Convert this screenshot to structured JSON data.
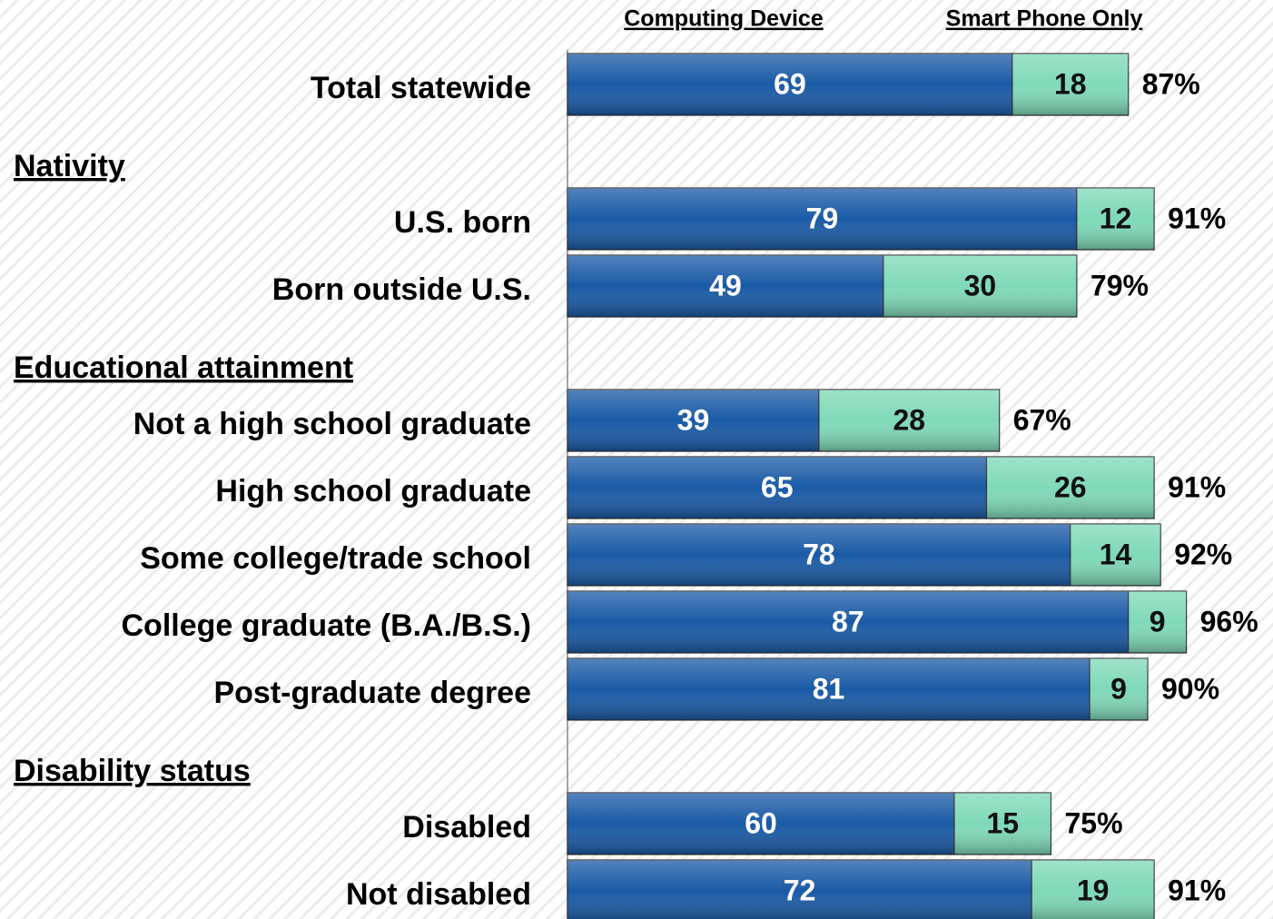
{
  "chart_data": {
    "type": "stacked_bar_h",
    "categories": [
      "Total statewide",
      "Nativity",
      "U.S. born",
      "Born outside U.S.",
      "Educational attainment",
      "Not a high school graduate",
      "High school graduate",
      "Some college/trade school",
      "College graduate (B.A./B.S.)",
      "Post-graduate degree",
      "Disability status",
      "Disabled",
      "Not disabled"
    ],
    "series": [
      {
        "name": "Computing Device",
        "color": "#1a5aa6",
        "values": [
          69,
          null,
          79,
          49,
          null,
          39,
          65,
          78,
          87,
          81,
          null,
          60,
          72
        ]
      },
      {
        "name": "Smart Phone Only",
        "color": "#7fd9b8",
        "values": [
          18,
          null,
          12,
          30,
          null,
          28,
          26,
          14,
          9,
          9,
          null,
          15,
          19
        ]
      }
    ],
    "totals": [
      87,
      null,
      91,
      79,
      null,
      67,
      91,
      92,
      96,
      90,
      null,
      75,
      91
    ],
    "total_labels": [
      "87%",
      null,
      "91%",
      "79%",
      null,
      "67%",
      "91%",
      "92%",
      "96%",
      "90%",
      null,
      "75%",
      "91%"
    ],
    "xlim": [
      0,
      100
    ]
  }
}
